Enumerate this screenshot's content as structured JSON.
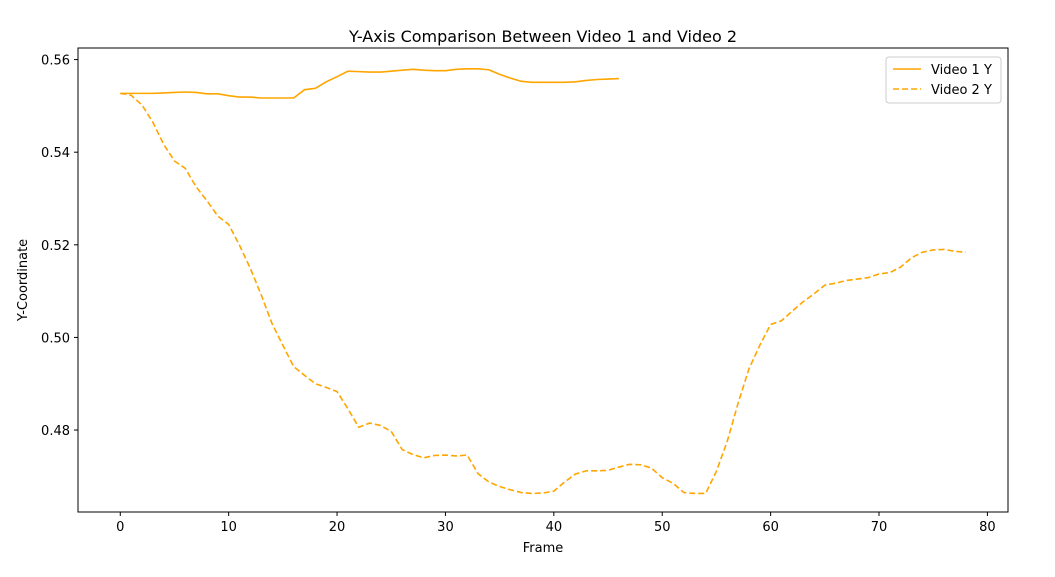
{
  "chart_data": {
    "type": "line",
    "title": "Y-Axis Comparison Between Video 1 and Video 2",
    "xlabel": "Frame",
    "ylabel": "Y-Coordinate",
    "xlim": [
      -3.9,
      81.9
    ],
    "ylim": [
      0.4623,
      0.5625
    ],
    "xticks": [
      0,
      10,
      20,
      30,
      40,
      50,
      60,
      70,
      80
    ],
    "yticks": [
      0.48,
      0.5,
      0.52,
      0.54,
      0.56
    ],
    "ytick_labels": [
      "0.48",
      "0.50",
      "0.52",
      "0.54",
      "0.56"
    ],
    "grid": false,
    "legend_position": "top-right",
    "series": [
      {
        "name": "Video 1 Y",
        "color": "#ffa500",
        "style": "solid",
        "x": [
          0,
          1,
          2,
          3,
          4,
          5,
          6,
          7,
          8,
          9,
          10,
          11,
          12,
          13,
          14,
          15,
          16,
          17,
          18,
          19,
          20,
          21,
          22,
          23,
          24,
          25,
          26,
          27,
          28,
          29,
          30,
          31,
          32,
          33,
          34,
          35,
          36,
          37,
          38,
          39,
          40,
          41,
          42,
          43,
          44,
          45,
          46
        ],
        "y": [
          0.5527,
          0.5527,
          0.5527,
          0.5527,
          0.5528,
          0.5529,
          0.553,
          0.5529,
          0.5526,
          0.5526,
          0.5522,
          0.5519,
          0.5519,
          0.5517,
          0.5517,
          0.5517,
          0.5517,
          0.5535,
          0.5538,
          0.5552,
          0.5563,
          0.5575,
          0.5574,
          0.5573,
          0.5573,
          0.5575,
          0.5577,
          0.5579,
          0.5577,
          0.5576,
          0.5576,
          0.5579,
          0.558,
          0.558,
          0.5578,
          0.5568,
          0.556,
          0.5553,
          0.5551,
          0.5551,
          0.5551,
          0.5551,
          0.5552,
          0.5555,
          0.5557,
          0.5558,
          0.5559
        ]
      },
      {
        "name": "Video 2 Y",
        "color": "#ffa500",
        "style": "dashed",
        "x": [
          0,
          1,
          2,
          3,
          4,
          5,
          6,
          7,
          8,
          9,
          10,
          11,
          12,
          13,
          14,
          15,
          16,
          17,
          18,
          19,
          20,
          21,
          22,
          23,
          24,
          25,
          26,
          27,
          28,
          29,
          30,
          31,
          32,
          33,
          34,
          35,
          36,
          37,
          38,
          39,
          40,
          41,
          42,
          43,
          44,
          45,
          46,
          47,
          48,
          49,
          50,
          51,
          52,
          53,
          54,
          55,
          56,
          57,
          58,
          59,
          60,
          61,
          62,
          63,
          64,
          65,
          66,
          67,
          68,
          69,
          70,
          71,
          72,
          73,
          74,
          75,
          76,
          77,
          78
        ],
        "y": [
          0.5527,
          0.5523,
          0.5502,
          0.5465,
          0.5417,
          0.5381,
          0.5365,
          0.5325,
          0.5295,
          0.5262,
          0.5244,
          0.5199,
          0.5149,
          0.5092,
          0.503,
          0.4983,
          0.4937,
          0.4918,
          0.49,
          0.4892,
          0.4883,
          0.4846,
          0.4806,
          0.4815,
          0.481,
          0.4797,
          0.4758,
          0.4747,
          0.474,
          0.4745,
          0.4746,
          0.4744,
          0.4746,
          0.4706,
          0.4688,
          0.4678,
          0.4671,
          0.4665,
          0.4663,
          0.4664,
          0.4668,
          0.4688,
          0.4705,
          0.4712,
          0.4712,
          0.4713,
          0.472,
          0.4726,
          0.4725,
          0.4718,
          0.4697,
          0.4685,
          0.4665,
          0.4663,
          0.4663,
          0.4711,
          0.4776,
          0.4858,
          0.4932,
          0.4983,
          0.5028,
          0.5036,
          0.5057,
          0.5077,
          0.5094,
          0.5113,
          0.5117,
          0.5123,
          0.5126,
          0.5129,
          0.5137,
          0.514,
          0.5152,
          0.5172,
          0.5184,
          0.5189,
          0.519,
          0.5186,
          0.5184
        ]
      }
    ]
  }
}
